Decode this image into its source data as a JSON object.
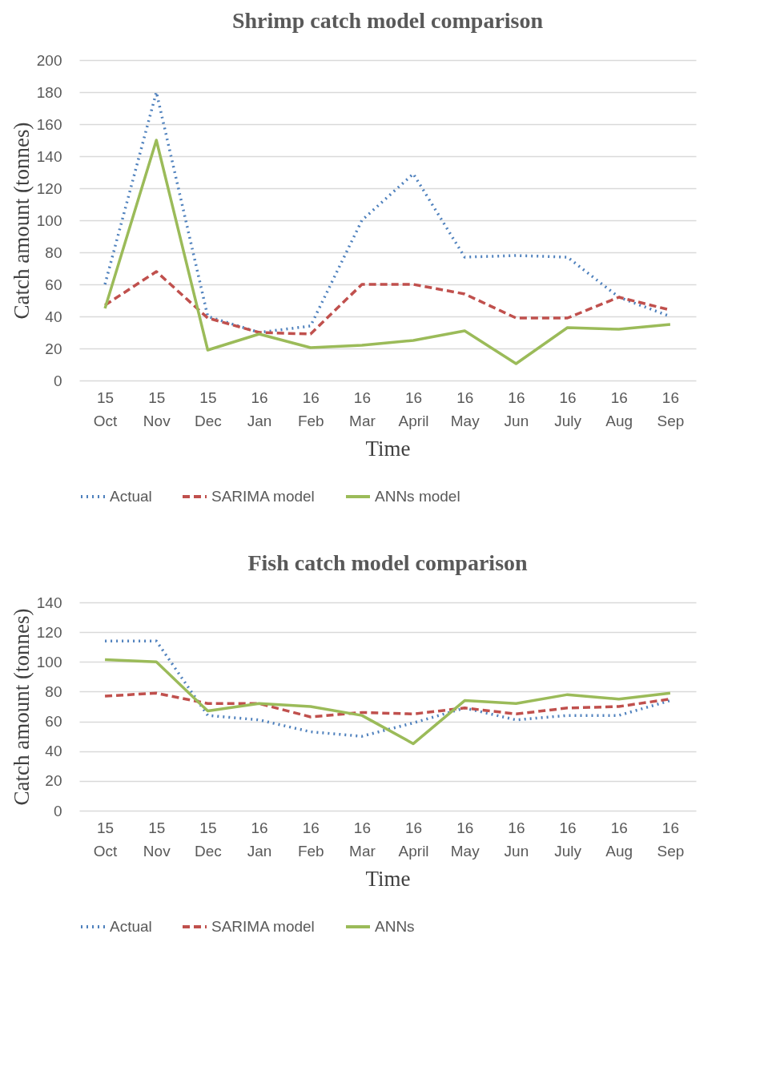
{
  "chart_data": [
    {
      "type": "line",
      "title": "Shrimp catch model comparison",
      "xlabel": "Time",
      "ylabel": "Catch amount (tonnes)",
      "categories": [
        "15 Oct",
        "15 Nov",
        "15 Dec",
        "16 Jan",
        "16 Feb",
        "16 Mar",
        "16 April",
        "16 May",
        "16 Jun",
        "16 July",
        "16 Aug",
        "16 Sep"
      ],
      "series": [
        {
          "name": "Actual",
          "color": "#4f81bd",
          "line_style": "dotted",
          "values": [
            60,
            180,
            40,
            30,
            34,
            100,
            129,
            77,
            78,
            77,
            52,
            40
          ]
        },
        {
          "name": "SARIMA model",
          "color": "#c0504d",
          "line_style": "dashed",
          "values": [
            47,
            68,
            39,
            30,
            29,
            60,
            60,
            54,
            39,
            39,
            52,
            44
          ]
        },
        {
          "name": "ANNs model",
          "color": "#9bbb59",
          "line_style": "solid",
          "values": [
            45,
            150,
            19,
            29,
            20.5,
            22,
            25,
            31,
            10.5,
            33,
            32,
            35
          ]
        }
      ],
      "ylim": [
        0,
        200
      ],
      "yticks": [
        0,
        20,
        40,
        60,
        80,
        100,
        120,
        140,
        160,
        180,
        200
      ],
      "grid": "y",
      "legend": "bottom"
    },
    {
      "type": "line",
      "title": "Fish catch model comparison",
      "xlabel": "Time",
      "ylabel": "Catch amount (tonnes)",
      "categories": [
        "15 Oct",
        "15 Nov",
        "15 Dec",
        "16 Jan",
        "16 Feb",
        "16 Mar",
        "16 April",
        "16 May",
        "16 Jun",
        "16 July",
        "16 Aug",
        "16 Sep"
      ],
      "series": [
        {
          "name": "Actual",
          "color": "#4f81bd",
          "line_style": "dotted",
          "values": [
            114,
            114,
            64,
            61,
            53,
            50,
            59,
            69,
            61,
            64,
            64,
            74
          ]
        },
        {
          "name": "SARIMA model",
          "color": "#c0504d",
          "line_style": "dashed",
          "values": [
            77,
            79,
            72,
            72,
            63,
            66,
            65,
            69,
            65,
            69,
            70,
            75
          ]
        },
        {
          "name": "ANNs",
          "color": "#9bbb59",
          "line_style": "solid",
          "values": [
            101.5,
            100,
            67,
            72,
            70,
            64,
            45,
            74,
            72,
            78,
            75,
            79
          ]
        }
      ],
      "ylim": [
        0,
        140
      ],
      "yticks": [
        0,
        20,
        40,
        60,
        80,
        100,
        120,
        140
      ],
      "grid": "y",
      "legend": "bottom"
    }
  ]
}
